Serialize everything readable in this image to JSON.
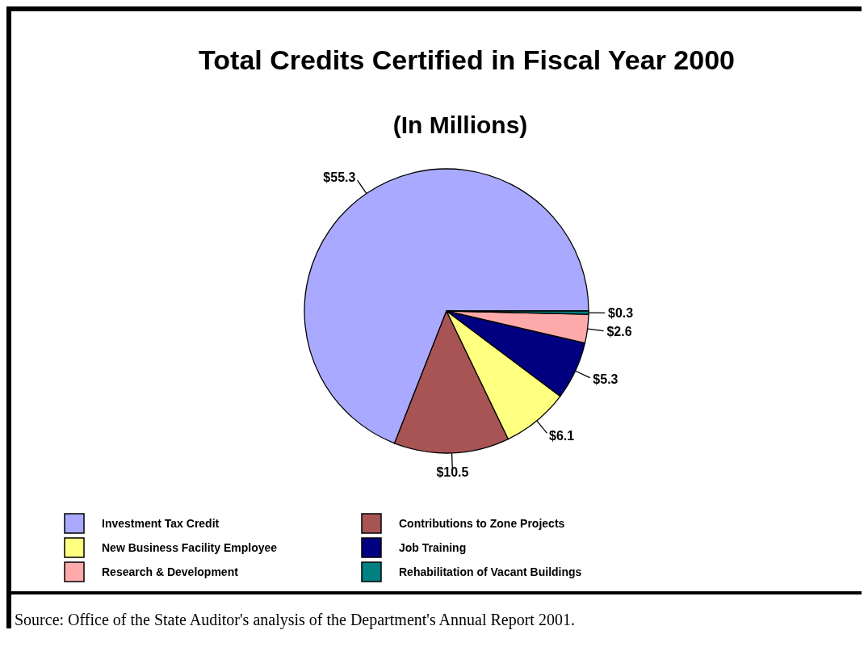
{
  "chart_data": {
    "type": "pie",
    "title": "Total Credits Certified in Fiscal Year 2000",
    "subtitle": "(In Millions)",
    "categories": [
      "Investment Tax Credit",
      "Contributions to Zone Projects",
      "New Business Facility Employee",
      "Job Training",
      "Research & Development",
      "Rehabilitation of Vacant Buildings"
    ],
    "values": [
      55.3,
      10.5,
      6.1,
      5.3,
      2.6,
      0.3
    ],
    "value_labels": [
      "$55.3",
      "$10.5",
      "$6.1",
      "$5.3",
      "$2.6",
      "$0.3"
    ],
    "colors": [
      "#a9a9ff",
      "#a85454",
      "#ffff80",
      "#000080",
      "#ffaaaa",
      "#008080"
    ],
    "legend": "bottom",
    "annotations": [
      "Source:  Office of the State Auditor's analysis of the Department's Annual Report 2001."
    ]
  }
}
